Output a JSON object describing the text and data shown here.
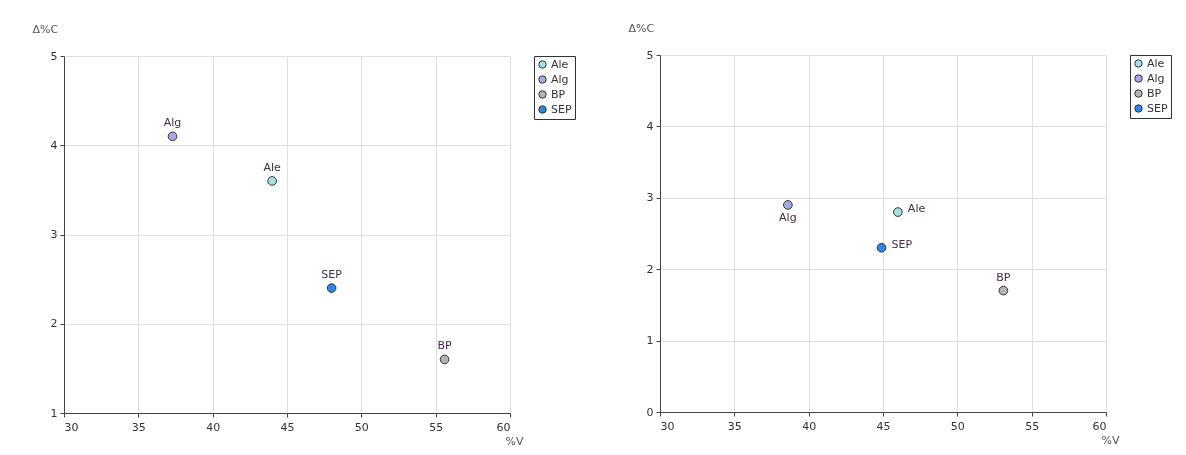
{
  "chart_data": [
    {
      "type": "scatter",
      "xlabel": "%V",
      "ylabel": "Δ%C",
      "xlim": [
        30,
        60
      ],
      "xticks": [
        30,
        35,
        40,
        45,
        50,
        55,
        60
      ],
      "ylim": [
        1,
        5
      ],
      "yticks": [
        1,
        2,
        3,
        4,
        5
      ],
      "grid": true,
      "legend": "top right",
      "marker": "circle",
      "series": [
        {
          "name": "Ale",
          "color": "#a2e2e2",
          "x": [
            44
          ],
          "values": [
            3.6
          ]
        },
        {
          "name": "Alg",
          "color": "#a3abe6",
          "x": [
            37.3
          ],
          "values": [
            4.1
          ]
        },
        {
          "name": "BP",
          "color": "#b4b4b4",
          "x": [
            55.6
          ],
          "values": [
            1.6
          ]
        },
        {
          "name": "SEP",
          "color": "#2a86e8",
          "x": [
            48
          ],
          "values": [
            2.4
          ]
        }
      ]
    },
    {
      "type": "scatter",
      "xlabel": "%V",
      "ylabel": "Δ%C",
      "xlim": [
        30,
        60
      ],
      "xticks": [
        30,
        35,
        40,
        45,
        50,
        55,
        60
      ],
      "ylim": [
        0,
        5
      ],
      "yticks": [
        0,
        1,
        2,
        3,
        4,
        5
      ],
      "grid": true,
      "legend": "top right",
      "marker": "circle",
      "series": [
        {
          "name": "Ale",
          "color": "#a2e2e2",
          "x": [
            46
          ],
          "values": [
            2.8
          ]
        },
        {
          "name": "Alg",
          "color": "#a3abe6",
          "x": [
            38.6
          ],
          "values": [
            2.9
          ]
        },
        {
          "name": "BP",
          "color": "#b4b4b4",
          "x": [
            53.1
          ],
          "values": [
            1.7
          ]
        },
        {
          "name": "SEP",
          "color": "#2a86e8",
          "x": [
            44.9
          ],
          "values": [
            2.3
          ]
        }
      ]
    }
  ]
}
